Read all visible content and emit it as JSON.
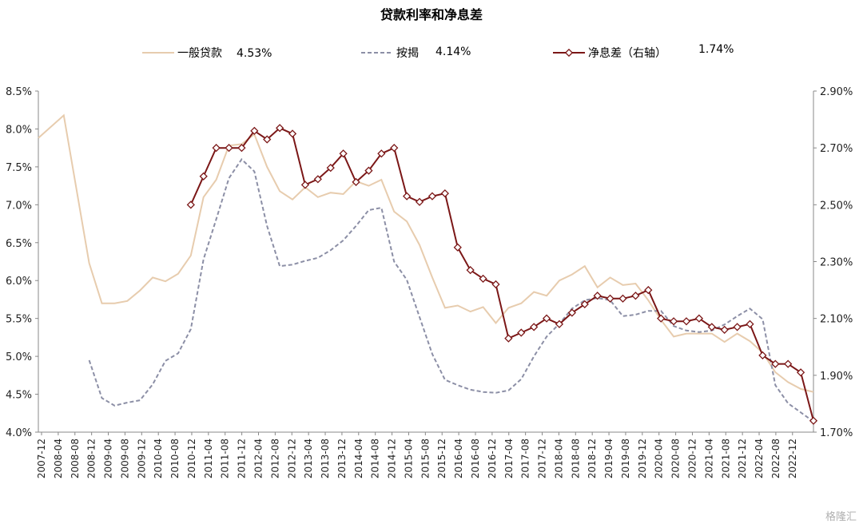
{
  "chart_data": {
    "type": "line",
    "title": "贷款利率和净息差",
    "legend": [
      {
        "name": "一般贷款",
        "latest": "4.53%",
        "color": "#e7ccae",
        "style": "solid"
      },
      {
        "name": "按揭",
        "latest": "4.14%",
        "color": "#8c8fa6",
        "style": "dashed"
      },
      {
        "name": "净息差（右轴）",
        "latest": "1.74%",
        "color": "#7b1717",
        "style": "marker"
      }
    ],
    "left_axis": {
      "ylim": [
        4.0,
        8.5
      ],
      "ticks": [
        "4.0%",
        "4.5%",
        "5.0%",
        "5.5%",
        "6.0%",
        "6.5%",
        "7.0%",
        "7.5%",
        "8.0%",
        "8.5%"
      ]
    },
    "right_axis": {
      "ylim": [
        1.7,
        2.9
      ],
      "ticks": [
        "1.70%",
        "1.90%",
        "2.10%",
        "2.30%",
        "2.50%",
        "2.70%",
        "2.90%"
      ]
    },
    "x_labels": [
      "2007-12",
      "2008-04",
      "2008-08",
      "2008-12",
      "2009-04",
      "2009-08",
      "2009-12",
      "2010-04",
      "2010-08",
      "2010-12",
      "2011-04",
      "2011-08",
      "2011-12",
      "2012-04",
      "2012-08",
      "2012-12",
      "2013-04",
      "2013-08",
      "2013-12",
      "2014-04",
      "2014-08",
      "2014-12",
      "2015-04",
      "2015-08",
      "2015-12",
      "2016-04",
      "2016-08",
      "2016-12",
      "2017-04",
      "2017-08",
      "2017-12",
      "2018-04",
      "2018-08",
      "2018-12",
      "2019-04",
      "2019-08",
      "2019-12",
      "2020-04",
      "2020-08",
      "2020-12",
      "2021-04",
      "2021-08",
      "2021-12",
      "2022-04",
      "2022-08",
      "2022-12"
    ],
    "series": [
      {
        "name": "一般贷款",
        "points": [
          [
            "2007-12",
            7.88
          ],
          [
            "2008-06",
            8.18
          ],
          [
            "2008-12",
            6.23
          ],
          [
            "2009-03",
            5.7
          ],
          [
            "2009-06",
            5.7
          ],
          [
            "2009-09",
            5.73
          ],
          [
            "2009-12",
            5.87
          ],
          [
            "2010-03",
            6.04
          ],
          [
            "2010-06",
            5.99
          ],
          [
            "2010-09",
            6.09
          ],
          [
            "2010-12",
            6.33
          ],
          [
            "2011-03",
            7.1
          ],
          [
            "2011-06",
            7.33
          ],
          [
            "2011-09",
            7.78
          ],
          [
            "2011-12",
            7.8
          ],
          [
            "2012-03",
            7.93
          ],
          [
            "2012-06",
            7.5
          ],
          [
            "2012-09",
            7.18
          ],
          [
            "2012-12",
            7.07
          ],
          [
            "2013-03",
            7.23
          ],
          [
            "2013-06",
            7.1
          ],
          [
            "2013-09",
            7.16
          ],
          [
            "2013-12",
            7.14
          ],
          [
            "2014-03",
            7.31
          ],
          [
            "2014-06",
            7.25
          ],
          [
            "2014-09",
            7.33
          ],
          [
            "2014-12",
            6.91
          ],
          [
            "2015-03",
            6.78
          ],
          [
            "2015-06",
            6.47
          ],
          [
            "2015-09",
            6.04
          ],
          [
            "2015-12",
            5.64
          ],
          [
            "2016-03",
            5.67
          ],
          [
            "2016-06",
            5.59
          ],
          [
            "2016-09",
            5.65
          ],
          [
            "2016-12",
            5.44
          ],
          [
            "2017-03",
            5.64
          ],
          [
            "2017-06",
            5.7
          ],
          [
            "2017-09",
            5.85
          ],
          [
            "2017-12",
            5.8
          ],
          [
            "2018-03",
            6.0
          ],
          [
            "2018-06",
            6.08
          ],
          [
            "2018-09",
            6.19
          ],
          [
            "2018-12",
            5.91
          ],
          [
            "2019-03",
            6.04
          ],
          [
            "2019-06",
            5.94
          ],
          [
            "2019-09",
            5.96
          ],
          [
            "2019-12",
            5.74
          ],
          [
            "2020-03",
            5.48
          ],
          [
            "2020-06",
            5.26
          ],
          [
            "2020-09",
            5.3
          ],
          [
            "2020-12",
            5.3
          ],
          [
            "2021-03",
            5.3
          ],
          [
            "2021-06",
            5.19
          ],
          [
            "2021-09",
            5.3
          ],
          [
            "2021-12",
            5.2
          ],
          [
            "2022-03",
            5.05
          ],
          [
            "2022-06",
            4.79
          ],
          [
            "2022-09",
            4.66
          ],
          [
            "2022-12",
            4.57
          ],
          [
            "2023-03",
            4.53
          ]
        ]
      },
      {
        "name": "按揭",
        "points": [
          [
            "2008-12",
            4.95
          ],
          [
            "2009-03",
            4.45
          ],
          [
            "2009-06",
            4.35
          ],
          [
            "2009-09",
            4.39
          ],
          [
            "2009-12",
            4.42
          ],
          [
            "2010-03",
            4.63
          ],
          [
            "2010-06",
            4.94
          ],
          [
            "2010-09",
            5.04
          ],
          [
            "2010-12",
            5.36
          ],
          [
            "2011-03",
            6.28
          ],
          [
            "2011-06",
            6.81
          ],
          [
            "2011-09",
            7.35
          ],
          [
            "2011-12",
            7.6
          ],
          [
            "2012-03",
            7.44
          ],
          [
            "2012-06",
            6.72
          ],
          [
            "2012-09",
            6.19
          ],
          [
            "2012-12",
            6.21
          ],
          [
            "2013-03",
            6.26
          ],
          [
            "2013-06",
            6.3
          ],
          [
            "2013-09",
            6.4
          ],
          [
            "2013-12",
            6.53
          ],
          [
            "2014-03",
            6.72
          ],
          [
            "2014-06",
            6.93
          ],
          [
            "2014-09",
            6.96
          ],
          [
            "2014-12",
            6.25
          ],
          [
            "2015-03",
            6.01
          ],
          [
            "2015-06",
            5.52
          ],
          [
            "2015-09",
            5.03
          ],
          [
            "2015-12",
            4.69
          ],
          [
            "2016-03",
            4.62
          ],
          [
            "2016-06",
            4.56
          ],
          [
            "2016-09",
            4.53
          ],
          [
            "2016-12",
            4.52
          ],
          [
            "2017-03",
            4.55
          ],
          [
            "2017-06",
            4.7
          ],
          [
            "2017-09",
            5.0
          ],
          [
            "2017-12",
            5.26
          ],
          [
            "2018-03",
            5.43
          ],
          [
            "2018-06",
            5.63
          ],
          [
            "2018-09",
            5.74
          ],
          [
            "2018-12",
            5.77
          ],
          [
            "2019-03",
            5.74
          ],
          [
            "2019-06",
            5.53
          ],
          [
            "2019-09",
            5.55
          ],
          [
            "2019-12",
            5.6
          ],
          [
            "2020-03",
            5.6
          ],
          [
            "2020-06",
            5.4
          ],
          [
            "2020-09",
            5.34
          ],
          [
            "2020-12",
            5.32
          ],
          [
            "2021-03",
            5.34
          ],
          [
            "2021-06",
            5.42
          ],
          [
            "2021-09",
            5.53
          ],
          [
            "2021-12",
            5.63
          ],
          [
            "2022-03",
            5.49
          ],
          [
            "2022-06",
            4.62
          ],
          [
            "2022-09",
            4.38
          ],
          [
            "2022-12",
            4.26
          ],
          [
            "2023-03",
            4.14
          ]
        ]
      },
      {
        "name": "净息差（右轴）",
        "axis": "right",
        "points": [
          [
            "2010-12",
            2.5
          ],
          [
            "2011-03",
            2.6
          ],
          [
            "2011-06",
            2.7
          ],
          [
            "2011-09",
            2.7
          ],
          [
            "2011-12",
            2.7
          ],
          [
            "2012-03",
            2.76
          ],
          [
            "2012-06",
            2.73
          ],
          [
            "2012-09",
            2.77
          ],
          [
            "2012-12",
            2.75
          ],
          [
            "2013-03",
            2.57
          ],
          [
            "2013-06",
            2.59
          ],
          [
            "2013-09",
            2.63
          ],
          [
            "2013-12",
            2.68
          ],
          [
            "2014-03",
            2.58
          ],
          [
            "2014-06",
            2.62
          ],
          [
            "2014-09",
            2.68
          ],
          [
            "2014-12",
            2.7
          ],
          [
            "2015-03",
            2.53
          ],
          [
            "2015-06",
            2.51
          ],
          [
            "2015-09",
            2.53
          ],
          [
            "2015-12",
            2.54
          ],
          [
            "2016-03",
            2.35
          ],
          [
            "2016-06",
            2.27
          ],
          [
            "2016-09",
            2.24
          ],
          [
            "2016-12",
            2.22
          ],
          [
            "2017-03",
            2.03
          ],
          [
            "2017-06",
            2.05
          ],
          [
            "2017-09",
            2.07
          ],
          [
            "2017-12",
            2.1
          ],
          [
            "2018-03",
            2.08
          ],
          [
            "2018-06",
            2.12
          ],
          [
            "2018-09",
            2.15
          ],
          [
            "2018-12",
            2.18
          ],
          [
            "2019-03",
            2.17
          ],
          [
            "2019-06",
            2.17
          ],
          [
            "2019-09",
            2.18
          ],
          [
            "2019-12",
            2.2
          ],
          [
            "2020-03",
            2.1
          ],
          [
            "2020-06",
            2.09
          ],
          [
            "2020-09",
            2.09
          ],
          [
            "2020-12",
            2.1
          ],
          [
            "2021-03",
            2.07
          ],
          [
            "2021-06",
            2.06
          ],
          [
            "2021-09",
            2.07
          ],
          [
            "2021-12",
            2.08
          ],
          [
            "2022-03",
            1.97
          ],
          [
            "2022-06",
            1.94
          ],
          [
            "2022-09",
            1.94
          ],
          [
            "2022-12",
            1.91
          ],
          [
            "2023-03",
            1.74
          ]
        ]
      }
    ]
  },
  "watermark": "格隆汇"
}
